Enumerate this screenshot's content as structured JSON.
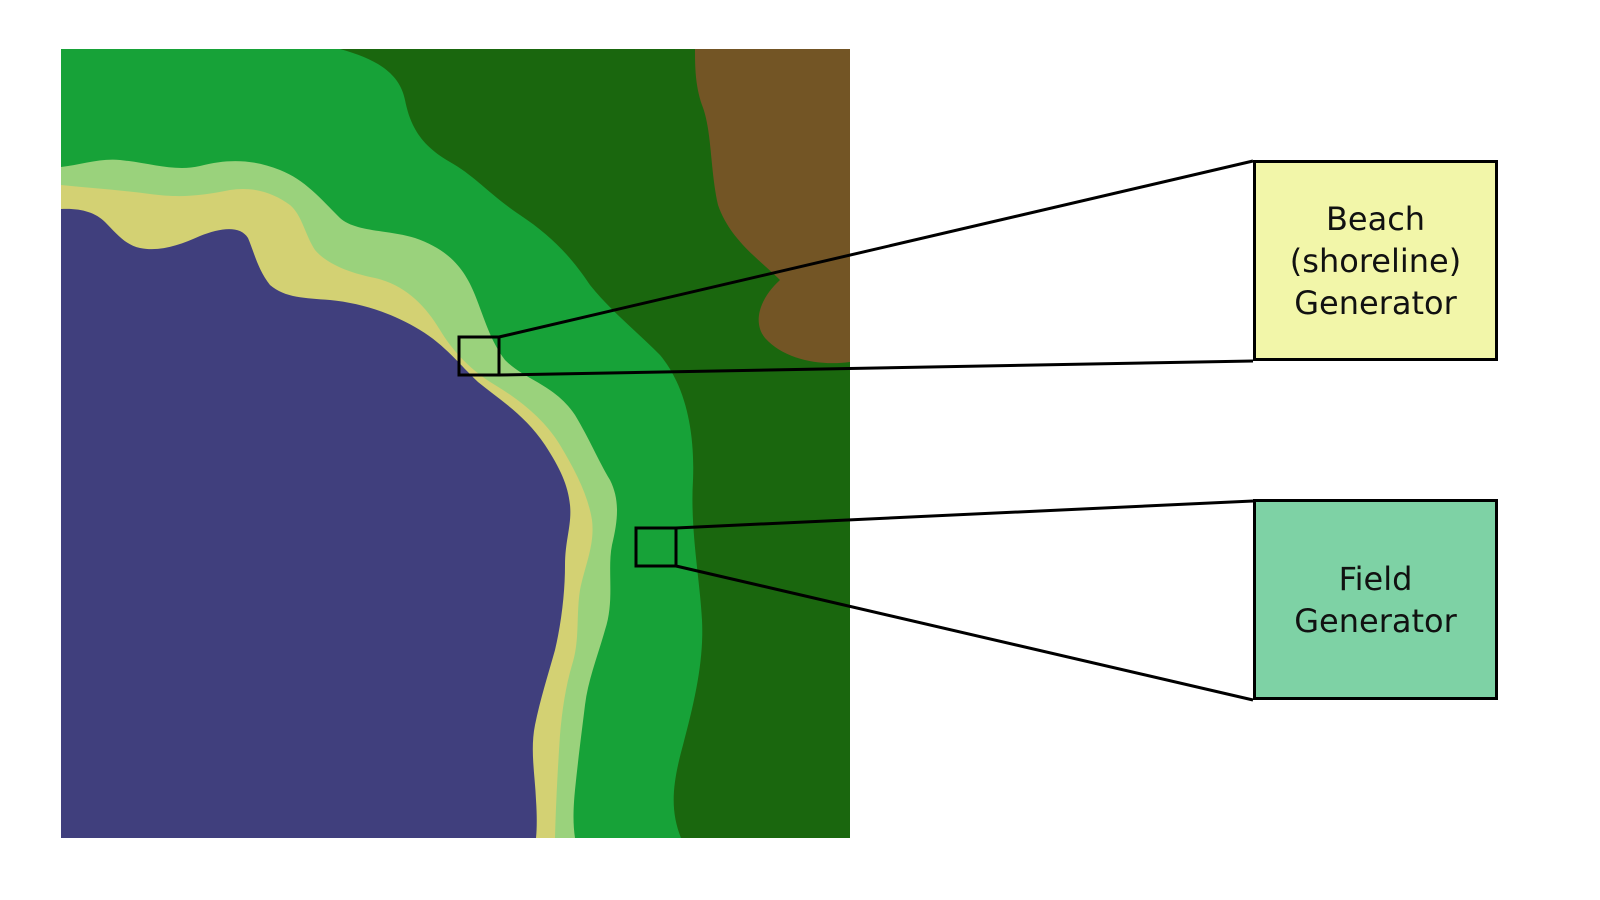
{
  "diagram": {
    "terrain_layers": [
      {
        "name": "forest",
        "color": "#1a670e"
      },
      {
        "name": "mountain",
        "color": "#735525"
      },
      {
        "name": "field",
        "color": "#17a238"
      },
      {
        "name": "shore-grass",
        "color": "#9ad27c"
      },
      {
        "name": "beach",
        "color": "#d3d173"
      },
      {
        "name": "water",
        "color": "#403f7d"
      }
    ],
    "callouts": [
      {
        "id": "beach",
        "lines": [
          "Beach",
          "(shoreline)",
          "Generator"
        ],
        "fill": "#f2f6a9"
      },
      {
        "id": "field",
        "lines": [
          "Field",
          "Generator"
        ],
        "fill": "#7ed2a5"
      }
    ]
  }
}
